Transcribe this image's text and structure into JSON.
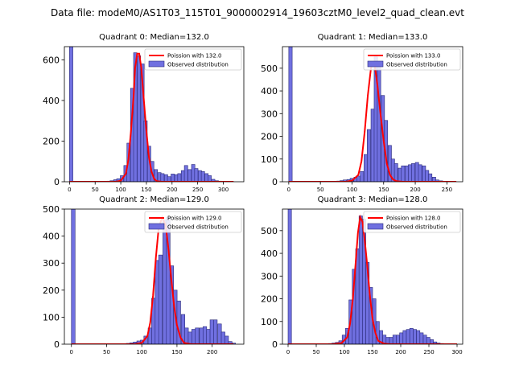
{
  "figure": {
    "suptitle": "Data file: modeM0/AS1T03_115T01_9000002914_19603cztM0_level2_quad_clean.evt"
  },
  "colors": {
    "bar_fill": "#7070e0",
    "bar_edge": "#2a2a7a",
    "line": "#ff0000"
  },
  "chart_data": [
    {
      "type": "bar",
      "title": "Quadrant 0: Median=132.0",
      "xlim": [
        -10,
        340
      ],
      "ylim": [
        0,
        665
      ],
      "xticks": [
        0,
        50,
        100,
        150,
        200,
        250,
        300
      ],
      "yticks": [
        0,
        200,
        400,
        600
      ],
      "bin_width": 6.6,
      "bins": [
        [
          0,
          665
        ],
        [
          66,
          2
        ],
        [
          73,
          3
        ],
        [
          79,
          5
        ],
        [
          86,
          10
        ],
        [
          92,
          15
        ],
        [
          99,
          30
        ],
        [
          106,
          80
        ],
        [
          112,
          190
        ],
        [
          119,
          460
        ],
        [
          125,
          635
        ],
        [
          132,
          620
        ],
        [
          139,
          580
        ],
        [
          145,
          300
        ],
        [
          152,
          175
        ],
        [
          158,
          100
        ],
        [
          165,
          60
        ],
        [
          172,
          45
        ],
        [
          178,
          40
        ],
        [
          185,
          35
        ],
        [
          191,
          25
        ],
        [
          198,
          38
        ],
        [
          205,
          35
        ],
        [
          211,
          40
        ],
        [
          218,
          55
        ],
        [
          224,
          80
        ],
        [
          231,
          60
        ],
        [
          238,
          85
        ],
        [
          244,
          65
        ],
        [
          251,
          55
        ],
        [
          257,
          50
        ],
        [
          264,
          40
        ],
        [
          270,
          30
        ],
        [
          277,
          12
        ],
        [
          284,
          5
        ],
        [
          290,
          3
        ]
      ],
      "line": {
        "x": [
          0,
          90,
          100,
          110,
          115,
          120,
          125,
          128,
          132,
          136,
          140,
          145,
          150,
          155,
          160,
          165,
          170,
          180,
          200,
          320
        ],
        "y": [
          0,
          0,
          5,
          40,
          110,
          250,
          420,
          560,
          630,
          630,
          560,
          400,
          250,
          120,
          50,
          15,
          3,
          0,
          0,
          0
        ]
      },
      "legend": [
        "Poission with 132.0",
        "Observed distribution"
      ]
    },
    {
      "type": "bar",
      "title": "Quadrant 1: Median=133.0",
      "xlim": [
        -10,
        275
      ],
      "ylim": [
        0,
        595
      ],
      "xticks": [
        0,
        50,
        100,
        150,
        200,
        250
      ],
      "yticks": [
        0,
        100,
        200,
        300,
        400,
        500
      ],
      "bin_width": 5.4,
      "bins": [
        [
          0,
          595
        ],
        [
          70,
          2
        ],
        [
          76,
          3
        ],
        [
          81,
          5
        ],
        [
          86,
          8
        ],
        [
          92,
          10
        ],
        [
          97,
          15
        ],
        [
          103,
          20
        ],
        [
          108,
          25
        ],
        [
          113,
          45
        ],
        [
          119,
          120
        ],
        [
          124,
          230
        ],
        [
          130,
          320
        ],
        [
          135,
          550
        ],
        [
          140,
          520
        ],
        [
          146,
          380
        ],
        [
          151,
          270
        ],
        [
          157,
          160
        ],
        [
          162,
          100
        ],
        [
          167,
          80
        ],
        [
          173,
          60
        ],
        [
          178,
          70
        ],
        [
          184,
          70
        ],
        [
          189,
          75
        ],
        [
          194,
          80
        ],
        [
          200,
          85
        ],
        [
          205,
          75
        ],
        [
          211,
          70
        ],
        [
          216,
          50
        ],
        [
          221,
          35
        ],
        [
          227,
          20
        ],
        [
          232,
          8
        ],
        [
          238,
          4
        ],
        [
          243,
          2
        ]
      ],
      "line": {
        "x": [
          0,
          90,
          100,
          110,
          115,
          120,
          125,
          130,
          133,
          136,
          140,
          145,
          150,
          155,
          160,
          165,
          170,
          180,
          200,
          265
        ],
        "y": [
          0,
          0,
          5,
          30,
          90,
          220,
          380,
          500,
          520,
          510,
          430,
          300,
          180,
          80,
          30,
          10,
          3,
          0,
          0,
          0
        ]
      },
      "legend": [
        "Poission with 133.0",
        "Observed distribution"
      ]
    },
    {
      "type": "bar",
      "title": "Quadrant 2: Median=129.0",
      "xlim": [
        -10,
        245
      ],
      "ylim": [
        0,
        500
      ],
      "xticks": [
        0,
        50,
        100,
        150,
        200
      ],
      "yticks": [
        0,
        100,
        200,
        300,
        400,
        500
      ],
      "bin_width": 5.2,
      "bins": [
        [
          0,
          500
        ],
        [
          72,
          2
        ],
        [
          78,
          3
        ],
        [
          83,
          5
        ],
        [
          88,
          8
        ],
        [
          93,
          12
        ],
        [
          98,
          15
        ],
        [
          103,
          30
        ],
        [
          109,
          60
        ],
        [
          114,
          170
        ],
        [
          119,
          310
        ],
        [
          124,
          330
        ],
        [
          130,
          460
        ],
        [
          135,
          470
        ],
        [
          140,
          290
        ],
        [
          145,
          200
        ],
        [
          150,
          160
        ],
        [
          156,
          110
        ],
        [
          161,
          60
        ],
        [
          166,
          45
        ],
        [
          171,
          55
        ],
        [
          176,
          60
        ],
        [
          182,
          60
        ],
        [
          187,
          65
        ],
        [
          192,
          55
        ],
        [
          197,
          90
        ],
        [
          202,
          90
        ],
        [
          208,
          75
        ],
        [
          213,
          45
        ],
        [
          218,
          30
        ],
        [
          223,
          10
        ],
        [
          228,
          4
        ]
      ],
      "line": {
        "x": [
          0,
          90,
          100,
          108,
          112,
          116,
          120,
          124,
          129,
          134,
          138,
          142,
          146,
          150,
          155,
          160,
          170,
          180,
          230
        ],
        "y": [
          0,
          0,
          5,
          30,
          80,
          180,
          320,
          430,
          470,
          440,
          350,
          240,
          140,
          70,
          25,
          5,
          0,
          0,
          0
        ]
      },
      "legend": [
        "Poission with 129.0",
        "Observed distribution"
      ]
    },
    {
      "type": "bar",
      "title": "Quadrant 3: Median=128.0",
      "xlim": [
        -10,
        310
      ],
      "ylim": [
        0,
        595
      ],
      "xticks": [
        0,
        50,
        100,
        150,
        200,
        250,
        300
      ],
      "yticks": [
        0,
        100,
        200,
        300,
        400,
        500
      ],
      "bin_width": 6.0,
      "bins": [
        [
          0,
          595
        ],
        [
          72,
          3
        ],
        [
          78,
          5
        ],
        [
          84,
          8
        ],
        [
          90,
          15
        ],
        [
          96,
          40
        ],
        [
          102,
          70
        ],
        [
          108,
          195
        ],
        [
          114,
          330
        ],
        [
          120,
          420
        ],
        [
          126,
          565
        ],
        [
          132,
          550
        ],
        [
          138,
          360
        ],
        [
          144,
          250
        ],
        [
          150,
          200
        ],
        [
          156,
          100
        ],
        [
          162,
          60
        ],
        [
          168,
          40
        ],
        [
          174,
          30
        ],
        [
          180,
          30
        ],
        [
          186,
          40
        ],
        [
          192,
          40
        ],
        [
          198,
          50
        ],
        [
          204,
          60
        ],
        [
          210,
          65
        ],
        [
          216,
          70
        ],
        [
          222,
          65
        ],
        [
          228,
          60
        ],
        [
          234,
          50
        ],
        [
          240,
          40
        ],
        [
          246,
          30
        ],
        [
          252,
          20
        ],
        [
          258,
          10
        ],
        [
          264,
          5
        ],
        [
          270,
          3
        ],
        [
          276,
          2
        ]
      ],
      "line": {
        "x": [
          0,
          80,
          95,
          105,
          110,
          115,
          120,
          124,
          128,
          132,
          136,
          140,
          145,
          150,
          155,
          160,
          170,
          180,
          200,
          300
        ],
        "y": [
          0,
          0,
          5,
          30,
          90,
          200,
          360,
          490,
          560,
          540,
          460,
          360,
          220,
          110,
          50,
          15,
          3,
          0,
          0,
          0
        ]
      },
      "legend": [
        "Poission with 128.0",
        "Observed distribution"
      ]
    }
  ]
}
